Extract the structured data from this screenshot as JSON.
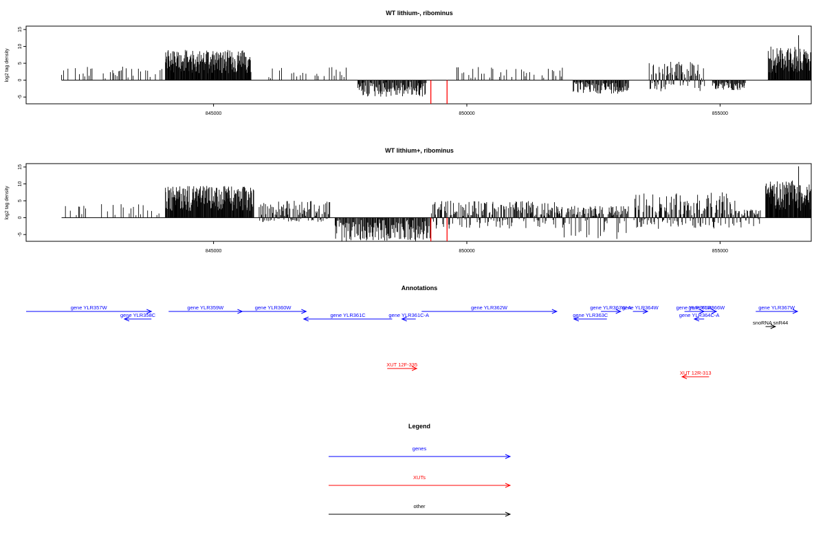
{
  "colors": {
    "genes": "#0000ff",
    "xuts": "#ff0000",
    "other": "#000000"
  },
  "chart_data": [
    {
      "type": "bar",
      "title": "WT lithium-, ribominus",
      "ylabel": "log2 tag density",
      "xlim": [
        841300,
        856800
      ],
      "ylim": [
        -7,
        16
      ],
      "x_ticks": [
        845000,
        850000,
        855000
      ],
      "y_ticks": [
        -5,
        0,
        5,
        10,
        15
      ],
      "grid": false,
      "segments": [
        {
          "x0": 842000,
          "x1": 844000,
          "type": "sparse-pos",
          "ymax": 3.5
        },
        {
          "x0": 844050,
          "x1": 845750,
          "type": "dense-pos",
          "ymax": 9
        },
        {
          "x0": 846050,
          "x1": 847650,
          "type": "sparse-pos",
          "ymax": 3.5
        },
        {
          "x0": 847850,
          "x1": 849200,
          "type": "neg",
          "ymin": -5
        },
        {
          "x0": 849750,
          "x1": 851900,
          "type": "sparse-pos",
          "ymax": 3.5
        },
        {
          "x0": 852100,
          "x1": 853200,
          "type": "neg",
          "ymin": -4
        },
        {
          "x0": 853600,
          "x1": 854700,
          "type": "mixed",
          "ymax": 5,
          "ymin": -3
        },
        {
          "x0": 854850,
          "x1": 855500,
          "type": "neg",
          "ymin": -3
        },
        {
          "x0": 855950,
          "x1": 856800,
          "type": "dense-pos",
          "ymax": 10
        }
      ],
      "red_bars": [
        {
          "x": 849290,
          "y": -7
        },
        {
          "x": 849610,
          "y": -7
        }
      ],
      "peak": {
        "x": 856550,
        "y": 13.3
      }
    },
    {
      "type": "bar",
      "title": "WT lithium+, ribominus",
      "ylabel": "log2 tag density",
      "xlim": [
        841300,
        856800
      ],
      "ylim": [
        -7,
        16
      ],
      "x_ticks": [
        845000,
        850000,
        855000
      ],
      "y_ticks": [
        -5,
        0,
        5,
        10,
        15
      ],
      "grid": false,
      "segments": [
        {
          "x0": 842000,
          "x1": 844000,
          "type": "sparse-pos",
          "ymax": 3.5
        },
        {
          "x0": 844050,
          "x1": 845800,
          "type": "dense-pos",
          "ymax": 9.5
        },
        {
          "x0": 845900,
          "x1": 847300,
          "type": "mixed",
          "ymax": 4.5,
          "ymin": -1
        },
        {
          "x0": 847400,
          "x1": 849300,
          "type": "neg",
          "ymin": -7
        },
        {
          "x0": 849300,
          "x1": 851800,
          "type": "mixed",
          "ymax": 4.5,
          "ymin": -3
        },
        {
          "x0": 851800,
          "x1": 853200,
          "type": "mixed",
          "ymax": 3,
          "ymin": -6
        },
        {
          "x0": 853300,
          "x1": 855300,
          "type": "mixed",
          "ymax": 7,
          "ymin": -3
        },
        {
          "x0": 855300,
          "x1": 855800,
          "type": "mixed",
          "ymax": 2,
          "ymin": -3
        },
        {
          "x0": 855900,
          "x1": 856800,
          "type": "dense-pos",
          "ymax": 11
        }
      ],
      "red_bars": [
        {
          "x": 849290,
          "y": -7
        },
        {
          "x": 849610,
          "y": -7
        }
      ],
      "peak": {
        "x": 856550,
        "y": 15.2
      }
    },
    {
      "type": "table",
      "title": "Annotations",
      "features": [
        {
          "label": "gene YLR357W",
          "cls": "genes",
          "strand": "+",
          "x0": 841300,
          "x1": 843850,
          "row": 0
        },
        {
          "label": "gene YLR358C",
          "cls": "genes",
          "strand": "-",
          "x0": 843300,
          "x1": 843850,
          "row": 1
        },
        {
          "label": "gene YLR359W",
          "cls": "genes",
          "strand": "+",
          "x0": 844200,
          "x1": 845700,
          "row": 0
        },
        {
          "label": "gene YLR360W",
          "cls": "genes",
          "strand": "+",
          "x0": 845650,
          "x1": 847000,
          "row": 0
        },
        {
          "label": "gene YLR361C",
          "cls": "genes",
          "strand": "-",
          "x0": 846950,
          "x1": 848750,
          "row": 1
        },
        {
          "label": "gene YLR361C-A",
          "cls": "genes",
          "strand": "-",
          "x0": 848950,
          "x1": 849230,
          "row": 1
        },
        {
          "label": "gene YLR362W",
          "cls": "genes",
          "strand": "+",
          "x0": 849350,
          "x1": 852100,
          "row": 0
        },
        {
          "label": "gene YLR363C",
          "cls": "genes",
          "strand": "-",
          "x0": 852450,
          "x1": 853120,
          "row": 1
        },
        {
          "label": "gene YLR363W-A",
          "cls": "genes",
          "strand": "+",
          "x0": 853000,
          "x1": 853400,
          "row": 0
        },
        {
          "label": "gene YLR364W",
          "cls": "genes",
          "strand": "+",
          "x0": 853650,
          "x1": 853950,
          "row": 0
        },
        {
          "label": "gene YLR365W",
          "cls": "genes",
          "strand": "+",
          "x0": 854700,
          "x1": 855100,
          "row": 0
        },
        {
          "label": "gene YLR366W",
          "cls": "genes",
          "strand": "+",
          "x0": 854950,
          "x1": 855350,
          "row": 0
        },
        {
          "label": "gene YLR364C-A",
          "cls": "genes",
          "strand": "-",
          "x0": 854900,
          "x1": 855100,
          "row": 1
        },
        {
          "label": "gene YLR367W",
          "cls": "genes",
          "strand": "+",
          "x0": 856150,
          "x1": 857000,
          "row": 0
        },
        {
          "label": "snoRNA snR44",
          "cls": "other",
          "strand": "+",
          "x0": 856350,
          "x1": 856550,
          "row": 2
        },
        {
          "label": "XUT 12F-335",
          "cls": "xuts",
          "strand": "+",
          "x0": 848650,
          "x1": 849250,
          "row": 4
        },
        {
          "label": "XUT 12R-313",
          "cls": "xuts",
          "strand": "-",
          "x0": 854650,
          "x1": 855200,
          "row": 5
        }
      ]
    }
  ],
  "legend": {
    "title": "Legend",
    "items": [
      {
        "label": "genes",
        "color": "#0000ff"
      },
      {
        "label": "XUTs",
        "color": "#ff0000"
      },
      {
        "label": "other",
        "color": "#000000"
      }
    ]
  }
}
